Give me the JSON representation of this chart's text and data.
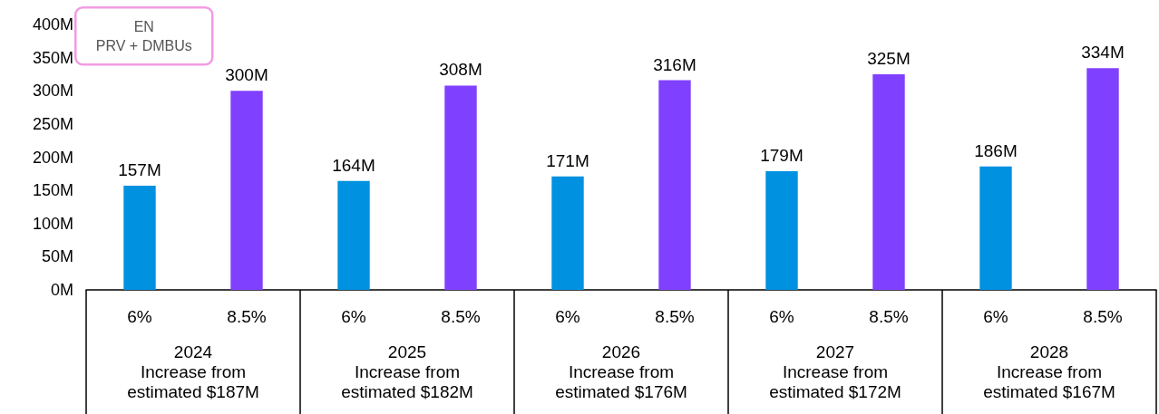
{
  "chart_data": {
    "type": "bar",
    "categories": [
      "6%",
      "8.5%",
      "6%",
      "8.5%",
      "6%",
      "8.5%",
      "6%",
      "8.5%",
      "6%",
      "8.5%"
    ],
    "values": [
      157,
      300,
      164,
      308,
      171,
      316,
      179,
      325,
      186,
      334
    ],
    "colors": [
      "#0091e0",
      "#8040ff",
      "#0091e0",
      "#8040ff",
      "#0091e0",
      "#8040ff",
      "#0091e0",
      "#8040ff",
      "#0091e0",
      "#8040ff"
    ],
    "value_labels": [
      "157M",
      "300M",
      "164M",
      "308M",
      "171M",
      "316M",
      "179M",
      "325M",
      "186M",
      "334M"
    ],
    "ylim": [
      0,
      400
    ],
    "yticks": [
      {
        "value": 0,
        "label": "0M"
      },
      {
        "value": 50,
        "label": "50M"
      },
      {
        "value": 100,
        "label": "100M"
      },
      {
        "value": 150,
        "label": "150M"
      },
      {
        "value": 200,
        "label": "200M"
      },
      {
        "value": 250,
        "label": "250M"
      },
      {
        "value": 300,
        "label": "300M"
      },
      {
        "value": 350,
        "label": "350M"
      },
      {
        "value": 400,
        "label": "400M"
      }
    ],
    "grid": false,
    "annotations": [
      "EN\nPRV + DMBUs",
      "2024\nIncrease from\nestimated $187M",
      "2025\nIncrease from\nestimated $182M",
      "2026\nIncrease from\nestimated $176M",
      "2027\nIncrease from\nestimated $172M",
      "2028\nIncrease from\nestimated $167M"
    ]
  }
}
